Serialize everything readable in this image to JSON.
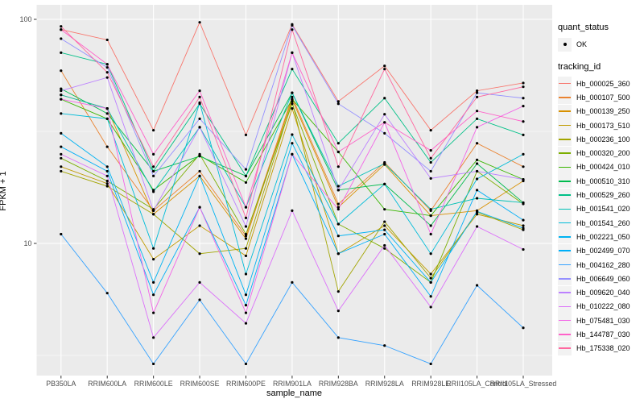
{
  "axes": {
    "x_title": "sample_name",
    "y_title": "FPKM + 1",
    "y_tick_labels": [
      "100",
      "10"
    ]
  },
  "legend": {
    "quant_status_title": "quant_status",
    "ok_label": "OK",
    "tracking_id_title": "tracking_id"
  },
  "colors": {
    "panel_bg": "#EBEBEB",
    "grid": "#FFFFFF",
    "tick_label": "#4D4D4D",
    "legend_key_bg": "#F2F2F2",
    "point": "#000000"
  },
  "chart_data": {
    "type": "line",
    "title": "",
    "xlabel": "sample_name",
    "ylabel": "FPKM + 1",
    "yscale": "log10",
    "ylim": [
      2.7,
      116
    ],
    "yticks_major": [
      100,
      10
    ],
    "yticks_minor": [
      31.623,
      3.162
    ],
    "grid": true,
    "legend_position": "right",
    "point_color": "#000000",
    "panel_bg": "#EBEBEB",
    "x_categories": [
      "PB350LA",
      "RRIM600LA",
      "RRIM600LE",
      "RRIM600SE",
      "RRIM600PE",
      "RRIM901LA",
      "RRIM928BA",
      "RRIM928LA",
      "RRIM928LE",
      "RRII105LA_Control",
      "RRII105LA_Stressed"
    ],
    "quant_status": "OK",
    "series": [
      {
        "name": "Hb_000025_360",
        "color": "#F8766D",
        "values": [
          90,
          81,
          32,
          97,
          30.5,
          95,
          43,
          62,
          32,
          48,
          52
        ]
      },
      {
        "name": "Hb_000107_500",
        "color": "#EA8331",
        "values": [
          59,
          27,
          14,
          21,
          10.8,
          45,
          15,
          23,
          14,
          28,
          22
        ]
      },
      {
        "name": "Hb_000139_250",
        "color": "#D89000",
        "values": [
          46,
          40,
          13.5,
          20,
          10.5,
          44,
          14.5,
          22.5,
          13.3,
          14,
          19
        ]
      },
      {
        "name": "Hb_000173_510",
        "color": "#C09B00",
        "values": [
          22,
          18.5,
          8.5,
          12,
          8.8,
          40,
          9,
          12,
          7.3,
          13.5,
          12
        ]
      },
      {
        "name": "Hb_000236_100",
        "color": "#A3A500",
        "values": [
          21,
          18,
          13.5,
          9,
          9.5,
          43,
          6.1,
          12.5,
          7,
          13.8,
          11.5
        ]
      },
      {
        "name": "Hb_000320_200",
        "color": "#7CAE00",
        "values": [
          24,
          19,
          14.2,
          25,
          11,
          42,
          12.2,
          9.5,
          6.7,
          21,
          15
        ]
      },
      {
        "name": "Hb_000424_010",
        "color": "#39B600",
        "values": [
          44,
          36,
          17.3,
          24.7,
          18.7,
          44,
          25.6,
          14.2,
          13.3,
          23.6,
          19.3
        ]
      },
      {
        "name": "Hb_000510_310",
        "color": "#00BB4E",
        "values": [
          49,
          38,
          21,
          24.5,
          20,
          47,
          17.3,
          18.4,
          12,
          22.7,
          15.2
        ]
      },
      {
        "name": "Hb_000529_260",
        "color": "#00C087",
        "values": [
          71,
          63,
          21,
          42,
          20,
          60,
          28,
          44.5,
          23,
          36,
          30.5
        ]
      },
      {
        "name": "Hb_001541_020",
        "color": "#00C0B5",
        "values": [
          46,
          40,
          17,
          33,
          14.5,
          47,
          18,
          22.7,
          14.2,
          15.9,
          15.2
        ]
      },
      {
        "name": "Hb_001541_260",
        "color": "#00BCD8",
        "values": [
          38,
          36,
          9.5,
          42.5,
          7.3,
          30.6,
          12.2,
          18.4,
          9,
          19.4,
          25
        ]
      },
      {
        "name": "Hb_002221_050",
        "color": "#00B3F2",
        "values": [
          31,
          22,
          6.7,
          20,
          5.9,
          28,
          10.8,
          11.5,
          6.7,
          13.9,
          11.7
        ]
      },
      {
        "name": "Hb_002499_070",
        "color": "#00AFF8",
        "values": [
          27,
          21,
          5.9,
          14.5,
          5.3,
          25,
          9,
          11,
          5.8,
          17.3,
          12.7
        ]
      },
      {
        "name": "Hb_004162_280",
        "color": "#35A2FF",
        "values": [
          11,
          6,
          2.9,
          5.6,
          2.9,
          6.7,
          3.8,
          3.5,
          2.9,
          6.5,
          4.2
        ]
      },
      {
        "name": "Hb_006649_060",
        "color": "#9590FF",
        "values": [
          82,
          61,
          20,
          36,
          21.4,
          94,
          42,
          31,
          21,
          47,
          44.5
        ]
      },
      {
        "name": "Hb_009620_040",
        "color": "#BC81FF",
        "values": [
          48,
          55,
          14,
          33,
          11.9,
          71,
          17.3,
          37.7,
          19.5,
          21,
          19.3
        ]
      },
      {
        "name": "Hb_010222_080",
        "color": "#DC71FA",
        "values": [
          25,
          20,
          3.8,
          6.7,
          4.4,
          14,
          5,
          9.8,
          5.2,
          11.9,
          9.4
        ]
      },
      {
        "name": "Hb_075481_030",
        "color": "#F365E7",
        "values": [
          44,
          40,
          4.9,
          14.5,
          4.9,
          25,
          14.2,
          34.7,
          11,
          33,
          41
        ]
      },
      {
        "name": "Hb_144787_030",
        "color": "#FF61C9",
        "values": [
          90,
          63,
          25,
          48,
          14.5,
          71,
          25.6,
          34.7,
          26,
          39,
          35
        ]
      },
      {
        "name": "Hb_175338_020",
        "color": "#FF689F",
        "values": [
          93,
          58,
          22,
          45,
          13,
          90,
          22,
          60,
          24,
          45,
          50
        ]
      }
    ]
  }
}
